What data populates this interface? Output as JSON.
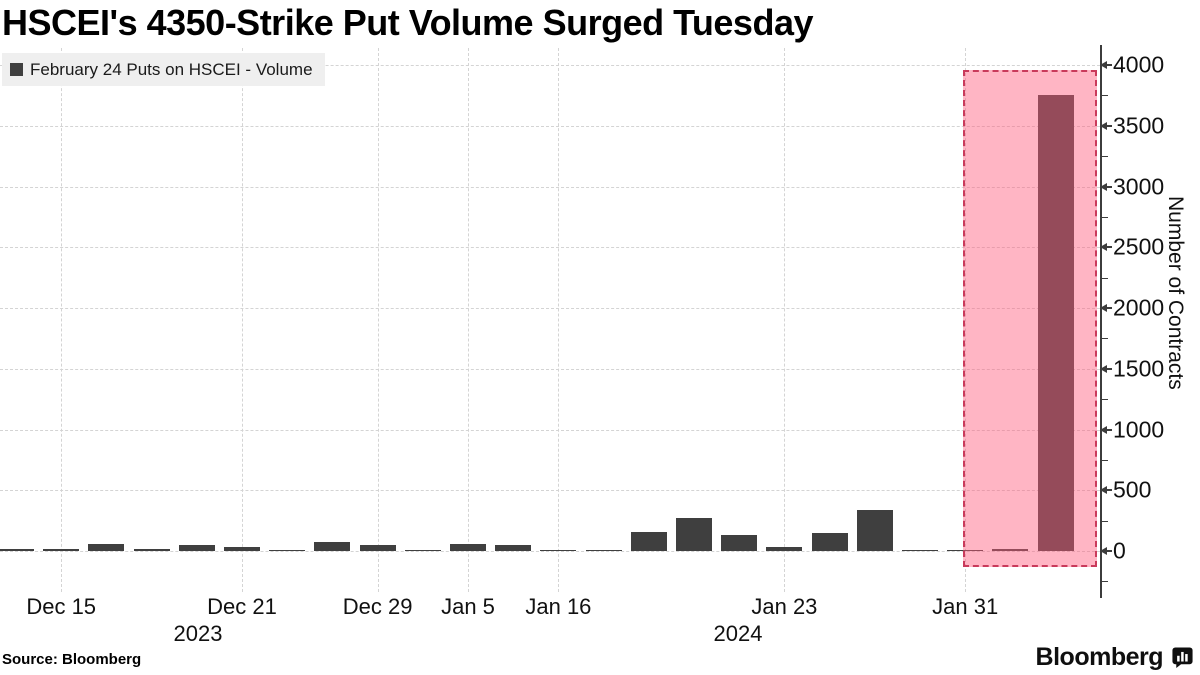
{
  "header": {
    "title": "HSCEI's 4350-Strike Put Volume Surged Tuesday"
  },
  "legend": {
    "label": "February 24 Puts on HSCEI - Volume"
  },
  "footer": {
    "source": "Source: Bloomberg",
    "brand": "Bloomberg"
  },
  "colors": {
    "bar": "#3f3f3f",
    "highlight_fill": "rgba(255,92,124,0.45)",
    "highlight_border": "#c93a5b",
    "grid": "#d4d4d4",
    "axis": "#3c3c3c",
    "legend_bg": "#efefef"
  },
  "chart_data": {
    "type": "bar",
    "title": "HSCEI's 4350-Strike Put Volume Surged Tuesday",
    "legend": [
      "February 24 Puts on HSCEI - Volume"
    ],
    "ylabel": "Number of Contracts",
    "xlabel": "",
    "ylim": [
      0,
      4000
    ],
    "yticks": [
      0,
      500,
      1000,
      1500,
      2000,
      2500,
      3000,
      3500,
      4000
    ],
    "ytick_minor_step": 250,
    "grid": true,
    "legend_position": "top-left",
    "values": [
      20,
      15,
      58,
      18,
      48,
      35,
      5,
      70,
      48,
      12,
      55,
      49,
      5,
      5,
      160,
      270,
      135,
      30,
      150,
      340,
      5,
      5,
      18,
      3750
    ],
    "x_major_ticks": [
      {
        "label": "Dec 15",
        "bar_index": 1
      },
      {
        "label": "Dec 21",
        "bar_index": 5
      },
      {
        "label": "Dec 29",
        "bar_index": 8
      },
      {
        "label": "Jan 5",
        "bar_index": 10
      },
      {
        "label": "Jan 16",
        "bar_index": 12
      },
      {
        "label": "Jan 23",
        "bar_index": 17
      },
      {
        "label": "Jan 31",
        "bar_index": 21
      }
    ],
    "year_labels": [
      "2023",
      "2024"
    ],
    "highlight": {
      "covers_last_n_bars": 2,
      "peak_value": 3750
    }
  }
}
